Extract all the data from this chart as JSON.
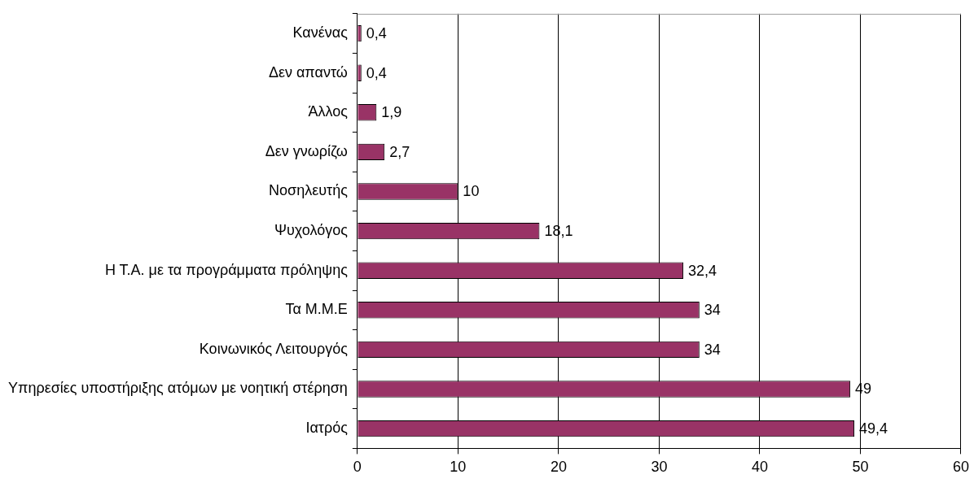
{
  "chart_data": {
    "type": "bar",
    "orientation": "horizontal",
    "categories": [
      "Κανένας",
      "Δεν απαντώ",
      "Άλλος",
      "Δεν γνωρίζω",
      "Νοσηλευτής",
      "Ψυχολόγος",
      "Η Τ.Α. με τα προγράμματα πρόληψης",
      "Τα Μ.Μ.Ε",
      "Κοινωνικός Λειτουργός",
      "Υπηρεσίες υποστήριξης ατόμων με νοητική στέρηση",
      "Ιατρός"
    ],
    "values": [
      0.4,
      0.4,
      1.9,
      2.7,
      10,
      18.1,
      32.4,
      34,
      34,
      49,
      49.4
    ],
    "value_labels": [
      "0,4",
      "0,4",
      "1,9",
      "2,7",
      "10",
      "18,1",
      "32,4",
      "34",
      "34",
      "49",
      "49,4"
    ],
    "color": "#993366",
    "xlim": [
      0,
      60
    ],
    "xticks": [
      0,
      10,
      20,
      30,
      40,
      50,
      60
    ],
    "grid": "x"
  }
}
